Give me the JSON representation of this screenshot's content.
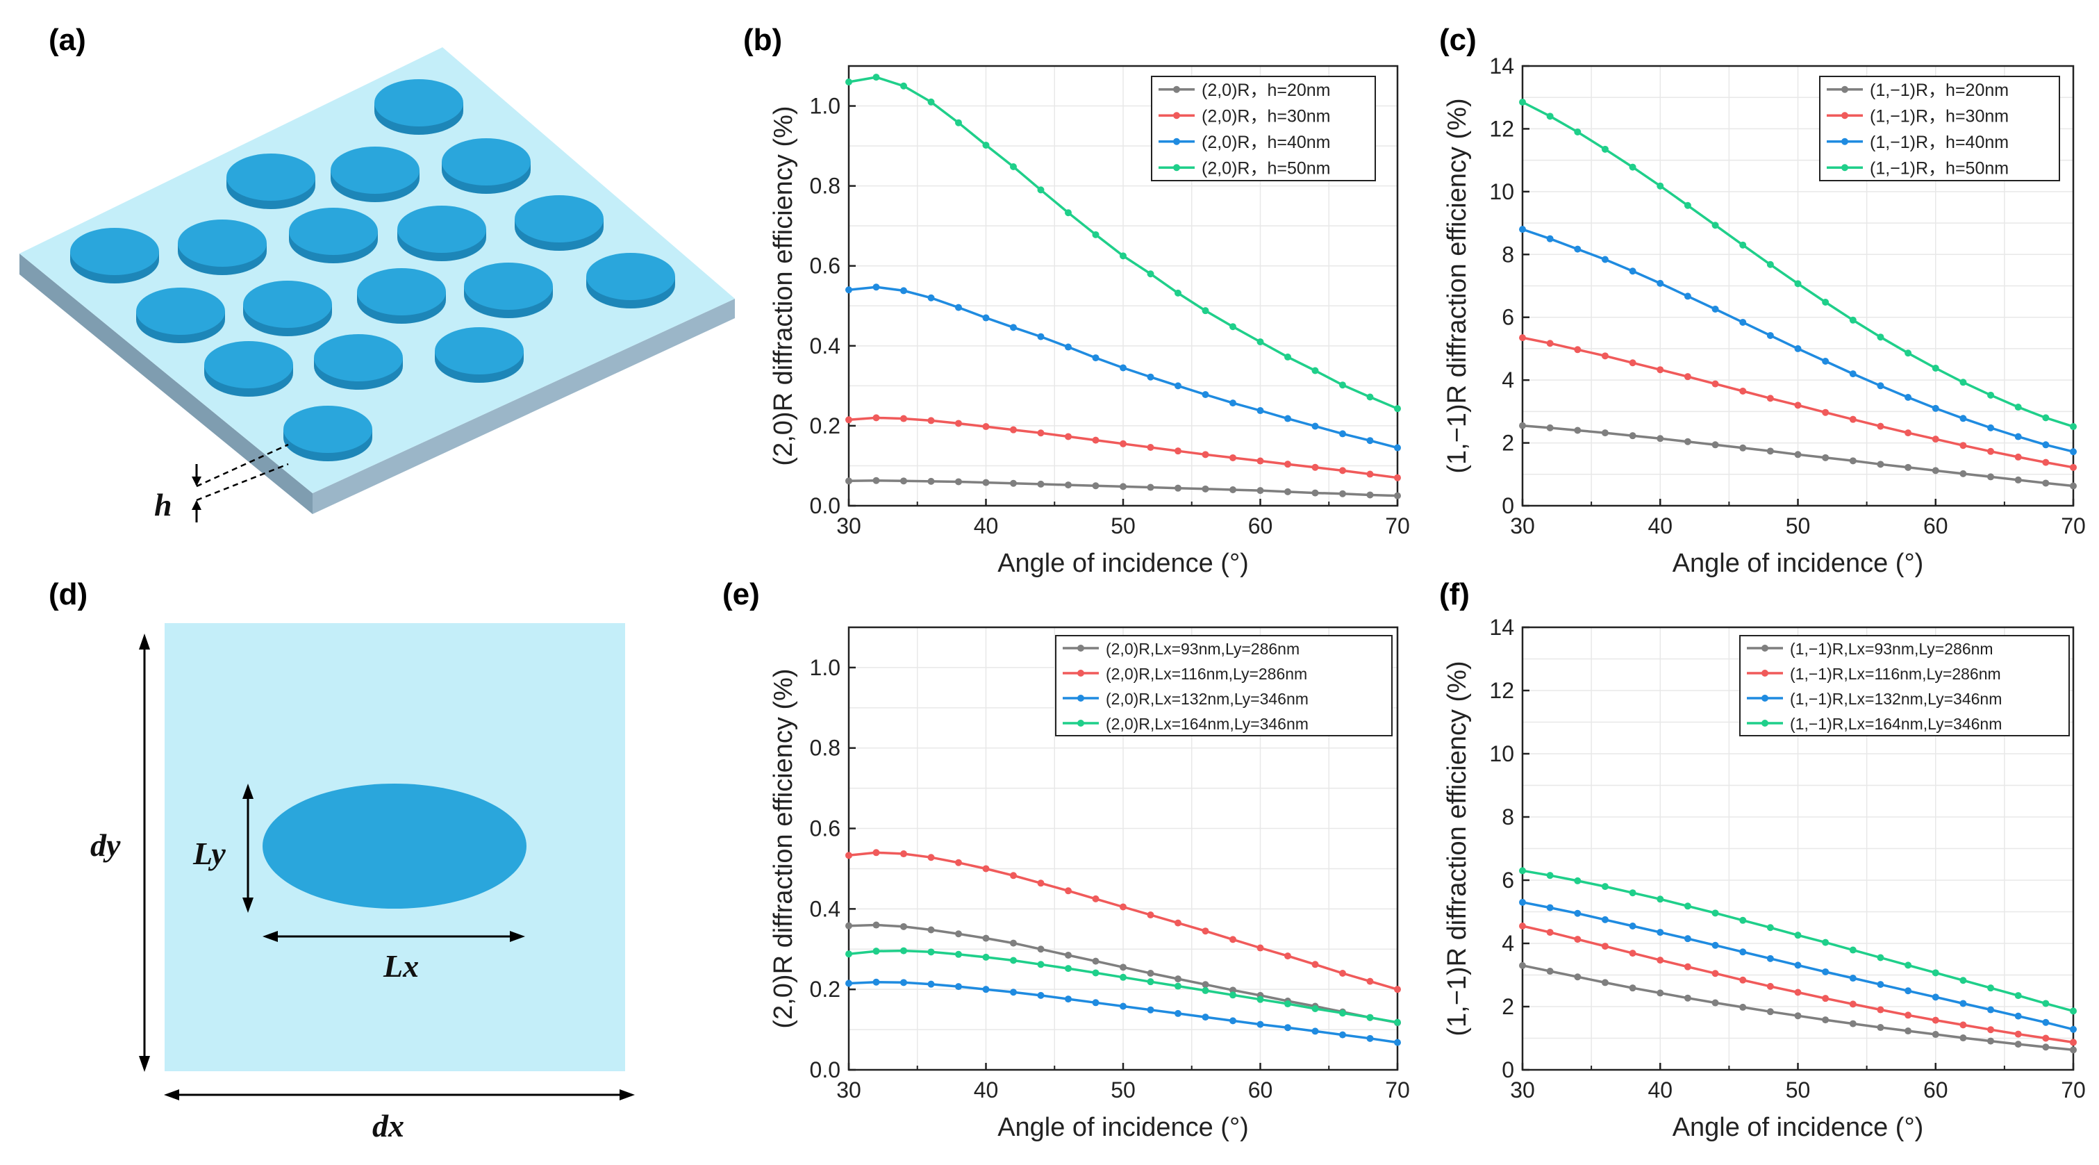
{
  "figure": {
    "panel_labels": [
      "(a)",
      "(b)",
      "(c)",
      "(d)",
      "(e)",
      "(f)"
    ],
    "schematic_a": {
      "height_label": "h"
    },
    "schematic_d": {
      "dy_label": "dy",
      "ly_label": "Ly",
      "lx_label": "Lx",
      "dx_label": "dx"
    },
    "colors": {
      "gray": "#7f7f7f",
      "red": "#f05a5a",
      "blue": "#1f8be0",
      "green": "#1fcf8a",
      "substrate": "#c4eef9",
      "disk": "#2aa6dc"
    }
  },
  "chart_data": [
    {
      "type": "line",
      "panel": "(b)",
      "xlabel": "Angle of incidence (°)",
      "ylabel": "(2,0)R diffraction efficiency (%)",
      "xlim": [
        30,
        70
      ],
      "ylim": [
        0,
        1.1
      ],
      "xticks": [
        30,
        40,
        50,
        60,
        70
      ],
      "yticks": [
        0.0,
        0.2,
        0.4,
        0.6,
        0.8,
        1.0
      ],
      "ytick_labels": [
        "0.0",
        "0.2",
        "0.4",
        "0.6",
        "0.8",
        "1.0"
      ],
      "x": [
        30,
        32,
        34,
        36,
        38,
        40,
        42,
        44,
        46,
        48,
        50,
        52,
        54,
        56,
        58,
        60,
        62,
        64,
        66,
        68,
        70
      ],
      "series": [
        {
          "name": "(2,0)R，h=20nm",
          "color": "#7f7f7f",
          "values": [
            0.062,
            0.063,
            0.062,
            0.061,
            0.06,
            0.058,
            0.056,
            0.054,
            0.052,
            0.05,
            0.048,
            0.046,
            0.044,
            0.042,
            0.04,
            0.038,
            0.035,
            0.032,
            0.03,
            0.027,
            0.025
          ]
        },
        {
          "name": "(2,0)R，h=30nm",
          "color": "#f05a5a",
          "values": [
            0.215,
            0.22,
            0.218,
            0.213,
            0.206,
            0.198,
            0.19,
            0.182,
            0.173,
            0.164,
            0.155,
            0.146,
            0.137,
            0.128,
            0.12,
            0.112,
            0.104,
            0.096,
            0.088,
            0.079,
            0.07
          ]
        },
        {
          "name": "(2,0)R，h=40nm",
          "color": "#1f8be0",
          "values": [
            0.54,
            0.547,
            0.538,
            0.52,
            0.496,
            0.47,
            0.446,
            0.423,
            0.397,
            0.37,
            0.345,
            0.322,
            0.3,
            0.278,
            0.257,
            0.238,
            0.218,
            0.199,
            0.18,
            0.163,
            0.145
          ]
        },
        {
          "name": "(2,0)R，h=50nm",
          "color": "#1fcf8a",
          "values": [
            1.06,
            1.072,
            1.05,
            1.01,
            0.958,
            0.902,
            0.848,
            0.79,
            0.733,
            0.678,
            0.625,
            0.58,
            0.532,
            0.488,
            0.448,
            0.41,
            0.372,
            0.338,
            0.302,
            0.272,
            0.243
          ]
        }
      ]
    },
    {
      "type": "line",
      "panel": "(c)",
      "xlabel": "Angle of incidence (°)",
      "ylabel": "(1,−1)R diffraction efficiency (%)",
      "xlim": [
        30,
        70
      ],
      "ylim": [
        0,
        14
      ],
      "xticks": [
        30,
        40,
        50,
        60,
        70
      ],
      "yticks": [
        0,
        2,
        4,
        6,
        8,
        10,
        12,
        14
      ],
      "ytick_labels": [
        "0",
        "2",
        "4",
        "6",
        "8",
        "10",
        "12",
        "14"
      ],
      "x": [
        30,
        32,
        34,
        36,
        38,
        40,
        42,
        44,
        46,
        48,
        50,
        52,
        54,
        56,
        58,
        60,
        62,
        64,
        66,
        68,
        70
      ],
      "series": [
        {
          "name": "(1,−1)R，h=20nm",
          "color": "#7f7f7f",
          "values": [
            2.55,
            2.48,
            2.4,
            2.32,
            2.23,
            2.14,
            2.04,
            1.94,
            1.84,
            1.74,
            1.63,
            1.53,
            1.43,
            1.32,
            1.22,
            1.12,
            1.02,
            0.92,
            0.82,
            0.72,
            0.63
          ]
        },
        {
          "name": "(1,−1)R，h=30nm",
          "color": "#f05a5a",
          "values": [
            5.35,
            5.17,
            4.97,
            4.77,
            4.55,
            4.33,
            4.11,
            3.88,
            3.65,
            3.42,
            3.2,
            2.97,
            2.75,
            2.53,
            2.32,
            2.12,
            1.92,
            1.73,
            1.55,
            1.38,
            1.22
          ]
        },
        {
          "name": "(1,−1)R，h=40nm",
          "color": "#1f8be0",
          "values": [
            8.8,
            8.5,
            8.17,
            7.84,
            7.47,
            7.08,
            6.67,
            6.26,
            5.84,
            5.42,
            5.0,
            4.6,
            4.2,
            3.82,
            3.45,
            3.1,
            2.78,
            2.48,
            2.2,
            1.94,
            1.72
          ]
        },
        {
          "name": "(1,−1)R，h=50nm",
          "color": "#1fcf8a",
          "values": [
            12.85,
            12.4,
            11.9,
            11.35,
            10.78,
            10.18,
            9.56,
            8.93,
            8.3,
            7.68,
            7.07,
            6.48,
            5.91,
            5.37,
            4.86,
            4.38,
            3.93,
            3.52,
            3.14,
            2.8,
            2.52
          ]
        }
      ]
    },
    {
      "type": "line",
      "panel": "(e)",
      "xlabel": "Angle of incidence (°)",
      "ylabel": "(2,0)R diffraction efficiency (%)",
      "xlim": [
        30,
        70
      ],
      "ylim": [
        0,
        1.1
      ],
      "xticks": [
        30,
        40,
        50,
        60,
        70
      ],
      "yticks": [
        0.0,
        0.2,
        0.4,
        0.6,
        0.8,
        1.0
      ],
      "ytick_labels": [
        "0.0",
        "0.2",
        "0.4",
        "0.6",
        "0.8",
        "1.0"
      ],
      "x": [
        30,
        32,
        34,
        36,
        38,
        40,
        42,
        44,
        46,
        48,
        50,
        52,
        54,
        56,
        58,
        60,
        62,
        64,
        66,
        68,
        70
      ],
      "series": [
        {
          "name": "(2,0)R,Lx=93nm,Ly=286nm",
          "color": "#7f7f7f",
          "values": [
            0.358,
            0.36,
            0.356,
            0.348,
            0.338,
            0.327,
            0.315,
            0.3,
            0.285,
            0.27,
            0.255,
            0.24,
            0.226,
            0.212,
            0.198,
            0.185,
            0.171,
            0.158,
            0.144,
            0.13,
            0.117
          ]
        },
        {
          "name": "(2,0)R,Lx=116nm,Ly=286nm",
          "color": "#f05a5a",
          "values": [
            0.533,
            0.54,
            0.537,
            0.528,
            0.515,
            0.5,
            0.483,
            0.464,
            0.445,
            0.425,
            0.405,
            0.385,
            0.365,
            0.345,
            0.324,
            0.303,
            0.283,
            0.262,
            0.24,
            0.22,
            0.2
          ]
        },
        {
          "name": "(2,0)R,Lx=132nm,Ly=346nm",
          "color": "#1f8be0",
          "values": [
            0.215,
            0.218,
            0.217,
            0.213,
            0.207,
            0.2,
            0.193,
            0.185,
            0.176,
            0.167,
            0.158,
            0.149,
            0.14,
            0.131,
            0.122,
            0.113,
            0.105,
            0.096,
            0.087,
            0.078,
            0.068
          ]
        },
        {
          "name": "(2,0)R,Lx=164nm,Ly=346nm",
          "color": "#1fcf8a",
          "values": [
            0.288,
            0.295,
            0.296,
            0.293,
            0.287,
            0.28,
            0.272,
            0.262,
            0.252,
            0.241,
            0.23,
            0.219,
            0.208,
            0.197,
            0.186,
            0.175,
            0.164,
            0.152,
            0.141,
            0.13,
            0.118
          ]
        }
      ]
    },
    {
      "type": "line",
      "panel": "(f)",
      "xlabel": "Angle of incidence (°)",
      "ylabel": "(1,−1)R diffraction efficiency (%)",
      "xlim": [
        30,
        70
      ],
      "ylim": [
        0,
        14
      ],
      "xticks": [
        30,
        40,
        50,
        60,
        70
      ],
      "yticks": [
        0,
        2,
        4,
        6,
        8,
        10,
        12,
        14
      ],
      "ytick_labels": [
        "0",
        "2",
        "4",
        "6",
        "8",
        "10",
        "12",
        "14"
      ],
      "x": [
        30,
        32,
        34,
        36,
        38,
        40,
        42,
        44,
        46,
        48,
        50,
        52,
        54,
        56,
        58,
        60,
        62,
        64,
        66,
        68,
        70
      ],
      "series": [
        {
          "name": "(1,−1)R,Lx=93nm,Ly=286nm",
          "color": "#7f7f7f",
          "values": [
            3.3,
            3.12,
            2.94,
            2.76,
            2.59,
            2.43,
            2.27,
            2.12,
            1.98,
            1.84,
            1.71,
            1.58,
            1.46,
            1.34,
            1.23,
            1.12,
            1.01,
            0.91,
            0.81,
            0.72,
            0.63
          ]
        },
        {
          "name": "(1,−1)R,Lx=116nm,Ly=286nm",
          "color": "#f05a5a",
          "values": [
            4.55,
            4.35,
            4.13,
            3.91,
            3.69,
            3.47,
            3.26,
            3.05,
            2.84,
            2.64,
            2.45,
            2.26,
            2.08,
            1.9,
            1.73,
            1.57,
            1.42,
            1.27,
            1.13,
            1.0,
            0.87
          ]
        },
        {
          "name": "(1,−1)R,Lx=132nm,Ly=346nm",
          "color": "#1f8be0",
          "values": [
            5.3,
            5.13,
            4.95,
            4.75,
            4.55,
            4.35,
            4.15,
            3.94,
            3.73,
            3.52,
            3.31,
            3.1,
            2.9,
            2.7,
            2.5,
            2.3,
            2.1,
            1.9,
            1.7,
            1.5,
            1.28
          ]
        },
        {
          "name": "(1,−1)R,Lx=164nm,Ly=346nm",
          "color": "#1fcf8a",
          "values": [
            6.3,
            6.15,
            5.98,
            5.8,
            5.6,
            5.4,
            5.18,
            4.96,
            4.73,
            4.5,
            4.26,
            4.03,
            3.79,
            3.55,
            3.31,
            3.07,
            2.83,
            2.59,
            2.35,
            2.1,
            1.86
          ]
        }
      ]
    }
  ]
}
